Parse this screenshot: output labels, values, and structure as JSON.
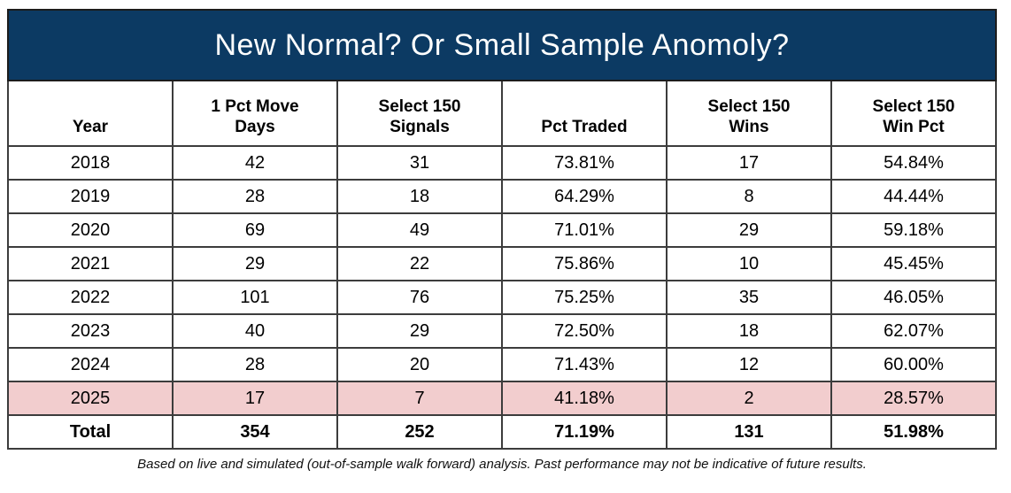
{
  "title": "New Normal? Or Small Sample Anomoly?",
  "colors": {
    "title_bg": "#0c3a63",
    "title_text": "#ffffff",
    "highlight_row_bg": "#f2cdce",
    "grid_line": "#3c3c3c"
  },
  "table": {
    "columns": [
      "Year",
      "1 Pct Move\nDays",
      "Select 150\nSignals",
      "Pct Traded",
      "Select 150\nWins",
      "Select 150\nWin Pct"
    ],
    "rows": [
      {
        "highlight": false,
        "total": false,
        "cells": [
          "2018",
          "42",
          "31",
          "73.81%",
          "17",
          "54.84%"
        ]
      },
      {
        "highlight": false,
        "total": false,
        "cells": [
          "2019",
          "28",
          "18",
          "64.29%",
          "8",
          "44.44%"
        ]
      },
      {
        "highlight": false,
        "total": false,
        "cells": [
          "2020",
          "69",
          "49",
          "71.01%",
          "29",
          "59.18%"
        ]
      },
      {
        "highlight": false,
        "total": false,
        "cells": [
          "2021",
          "29",
          "22",
          "75.86%",
          "10",
          "45.45%"
        ]
      },
      {
        "highlight": false,
        "total": false,
        "cells": [
          "2022",
          "101",
          "76",
          "75.25%",
          "35",
          "46.05%"
        ]
      },
      {
        "highlight": false,
        "total": false,
        "cells": [
          "2023",
          "40",
          "29",
          "72.50%",
          "18",
          "62.07%"
        ]
      },
      {
        "highlight": false,
        "total": false,
        "cells": [
          "2024",
          "28",
          "20",
          "71.43%",
          "12",
          "60.00%"
        ]
      },
      {
        "highlight": true,
        "total": false,
        "cells": [
          "2025",
          "17",
          "7",
          "41.18%",
          "2",
          "28.57%"
        ]
      },
      {
        "highlight": false,
        "total": true,
        "cells": [
          "Total",
          "354",
          "252",
          "71.19%",
          "131",
          "51.98%"
        ]
      }
    ]
  },
  "footnote": "Based on live and simulated (out-of-sample walk forward) analysis. Past performance may not be indicative of future results.",
  "chart_data": {
    "type": "table",
    "title": "New Normal? Or Small Sample Anomoly?",
    "columns": [
      "Year",
      "1 Pct Move Days",
      "Select 150 Signals",
      "Pct Traded",
      "Select 150 Wins",
      "Select 150 Win Pct"
    ],
    "rows": [
      [
        "2018",
        42,
        31,
        "73.81%",
        17,
        "54.84%"
      ],
      [
        "2019",
        28,
        18,
        "64.29%",
        8,
        "44.44%"
      ],
      [
        "2020",
        69,
        49,
        "71.01%",
        29,
        "59.18%"
      ],
      [
        "2021",
        29,
        22,
        "75.86%",
        10,
        "45.45%"
      ],
      [
        "2022",
        101,
        76,
        "75.25%",
        35,
        "46.05%"
      ],
      [
        "2023",
        40,
        29,
        "72.50%",
        18,
        "62.07%"
      ],
      [
        "2024",
        28,
        20,
        "71.43%",
        12,
        "60.00%"
      ],
      [
        "2025",
        17,
        7,
        "41.18%",
        2,
        "28.57%"
      ],
      [
        "Total",
        354,
        252,
        "71.19%",
        131,
        "51.98%"
      ]
    ],
    "highlighted_row": "2025",
    "footnote": "Based on live and simulated (out-of-sample walk forward) analysis. Past performance may not be indicative of future results."
  }
}
